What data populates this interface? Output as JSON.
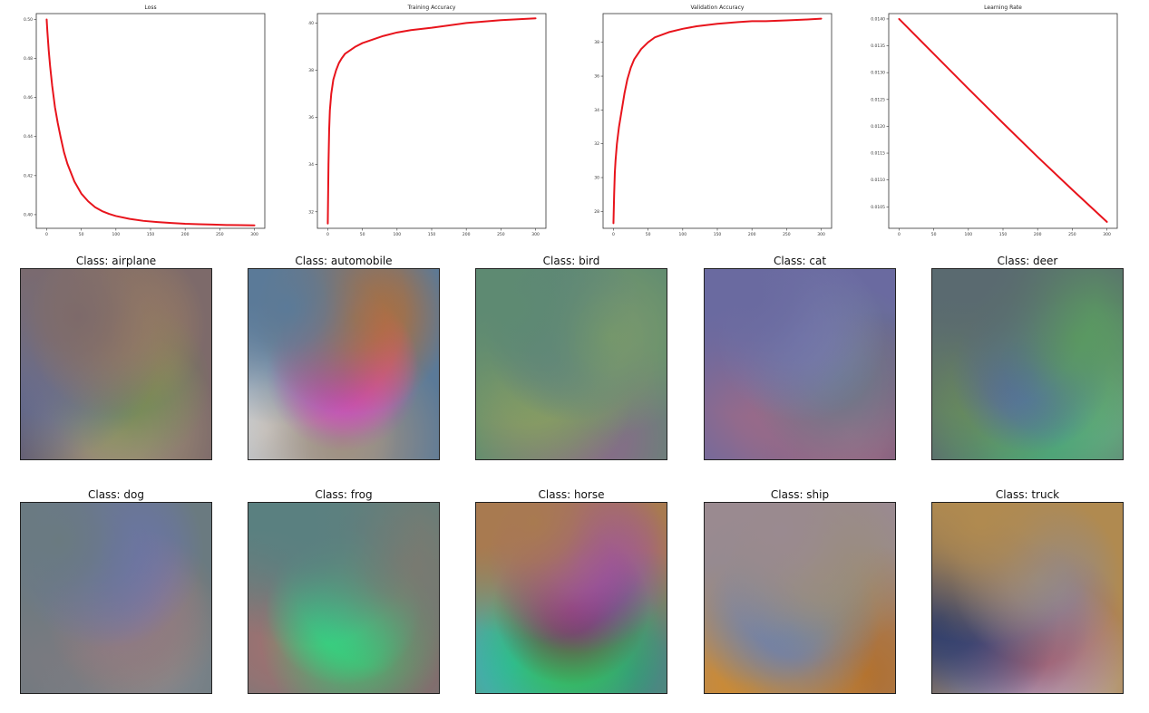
{
  "chart_data": [
    {
      "type": "line",
      "title": "Loss",
      "x": [
        0,
        1,
        2,
        3,
        5,
        8,
        12,
        16,
        20,
        25,
        30,
        40,
        50,
        60,
        70,
        80,
        90,
        100,
        120,
        140,
        160,
        180,
        200,
        220,
        240,
        260,
        280,
        300
      ],
      "series": [
        {
          "values": [
            0.5,
            0.494,
            0.489,
            0.484,
            0.476,
            0.466,
            0.455,
            0.447,
            0.44,
            0.432,
            0.426,
            0.417,
            0.4108,
            0.4068,
            0.4038,
            0.4018,
            0.4004,
            0.3993,
            0.3978,
            0.3968,
            0.3962,
            0.3957,
            0.3953,
            0.3951,
            0.3949,
            0.3947,
            0.3946,
            0.3945
          ]
        }
      ],
      "xlim": [
        -15,
        315
      ],
      "ylim": [
        0.393,
        0.503
      ],
      "xticks": [
        0,
        50,
        100,
        150,
        200,
        250,
        300
      ],
      "xtick_labels": [
        "0",
        "50",
        "100",
        "150",
        "200",
        "250",
        "300"
      ],
      "yticks": [
        0.4,
        0.42,
        0.44,
        0.46,
        0.48,
        0.5
      ],
      "ytick_labels": [
        "0.40",
        "0.42",
        "0.44",
        "0.46",
        "0.48",
        "0.50"
      ],
      "color": "#e8141c"
    },
    {
      "type": "line",
      "title": "Training Accuracy",
      "x": [
        0,
        1,
        2,
        3,
        5,
        8,
        12,
        16,
        20,
        25,
        30,
        40,
        50,
        60,
        80,
        100,
        120,
        150,
        200,
        250,
        300
      ],
      "series": [
        {
          "values": [
            31.5,
            34.0,
            35.5,
            36.3,
            37.0,
            37.6,
            38.0,
            38.3,
            38.5,
            38.7,
            38.8,
            39.0,
            39.15,
            39.25,
            39.45,
            39.6,
            39.7,
            39.8,
            40.0,
            40.12,
            40.2
          ]
        }
      ],
      "xlim": [
        -15,
        315
      ],
      "ylim": [
        31.3,
        40.4
      ],
      "xticks": [
        0,
        50,
        100,
        150,
        200,
        250,
        300
      ],
      "xtick_labels": [
        "0",
        "50",
        "100",
        "150",
        "200",
        "250",
        "300"
      ],
      "yticks": [
        32,
        34,
        36,
        38,
        40
      ],
      "ytick_labels": [
        "32",
        "34",
        "36",
        "38",
        "40"
      ],
      "color": "#e8141c"
    },
    {
      "type": "line",
      "title": "Validation Accuracy",
      "x": [
        0,
        1,
        2,
        3,
        5,
        8,
        12,
        16,
        20,
        25,
        30,
        40,
        50,
        60,
        80,
        100,
        120,
        150,
        180,
        200,
        220,
        250,
        280,
        300
      ],
      "series": [
        {
          "values": [
            27.3,
            29.0,
            30.3,
            31.0,
            32.0,
            33.0,
            34.0,
            35.0,
            35.8,
            36.5,
            37.0,
            37.6,
            38.0,
            38.3,
            38.6,
            38.8,
            38.95,
            39.1,
            39.2,
            39.25,
            39.25,
            39.3,
            39.35,
            39.4
          ]
        }
      ],
      "xlim": [
        -15,
        315
      ],
      "ylim": [
        27.0,
        39.7
      ],
      "xticks": [
        0,
        50,
        100,
        150,
        200,
        250,
        300
      ],
      "xtick_labels": [
        "0",
        "50",
        "100",
        "150",
        "200",
        "250",
        "300"
      ],
      "yticks": [
        28,
        30,
        32,
        34,
        36,
        38
      ],
      "ytick_labels": [
        "28",
        "30",
        "32",
        "34",
        "36",
        "38"
      ],
      "color": "#e8141c"
    },
    {
      "type": "line",
      "title": "Learning Rate",
      "x": [
        0,
        50,
        100,
        150,
        200,
        250,
        300
      ],
      "series": [
        {
          "values": [
            0.014,
            0.01335,
            0.0127,
            0.01206,
            0.01143,
            0.01082,
            0.01022
          ]
        }
      ],
      "xlim": [
        -15,
        315
      ],
      "ylim": [
        0.0101,
        0.0141
      ],
      "xticks": [
        0,
        50,
        100,
        150,
        200,
        250,
        300
      ],
      "xtick_labels": [
        "0",
        "50",
        "100",
        "150",
        "200",
        "250",
        "300"
      ],
      "yticks": [
        0.0105,
        0.011,
        0.0115,
        0.012,
        0.0125,
        0.013,
        0.0135,
        0.014
      ],
      "ytick_labels": [
        "0.0105",
        "0.0110",
        "0.0115",
        "0.0120",
        "0.0125",
        "0.0130",
        "0.0135",
        "0.0140"
      ],
      "color": "#e8141c"
    }
  ],
  "classes": [
    {
      "title": "Class: airplane",
      "colors": [
        "#7d6a6a",
        "#a8865e",
        "#5f6fa0",
        "#6c8a50",
        "#a89878",
        "#5a5a78"
      ]
    },
    {
      "title": "Class: automobile",
      "colors": [
        "#5b7a98",
        "#cf6a18",
        "#c040c8",
        "#ff5aa8",
        "#a09080",
        "#d8d8d8"
      ]
    },
    {
      "title": "Class: bird",
      "colors": [
        "#5e8a72",
        "#7a9a6a",
        "#4a6a9a",
        "#8aa060",
        "#6a8870",
        "#8a6a8a"
      ]
    },
    {
      "title": "Class: cat",
      "colors": [
        "#6a6aa0",
        "#7a80b0",
        "#6a7888",
        "#9a6a88",
        "#a0708a",
        "#5a4a6a"
      ]
    },
    {
      "title": "Class: deer",
      "colors": [
        "#5a6a70",
        "#5a9a60",
        "#5060b8",
        "#6a8a5a",
        "#4aa878",
        "#6ab080"
      ]
    },
    {
      "title": "Class: dog",
      "colors": [
        "#6a7a80",
        "#6a70c0",
        "#8a7a8a",
        "#9a7a70",
        "#7a7a80",
        "#8a8a90"
      ]
    },
    {
      "title": "Class: frog",
      "colors": [
        "#5a8080",
        "#7a7a70",
        "#2ae08a",
        "#40c070",
        "#a07070",
        "#8a6a6a"
      ]
    },
    {
      "title": "Class: horse",
      "colors": [
        "#a87a50",
        "#9a40c8",
        "#7a3050",
        "#30c050",
        "#30b8b8",
        "#3a8a8a"
      ]
    },
    {
      "title": "Class: ship",
      "colors": [
        "#9a8a90",
        "#9a9070",
        "#6a80b0",
        "#8a8a90",
        "#d08a2a",
        "#b07030"
      ]
    },
    {
      "title": "Class: truck",
      "colors": [
        "#b08a50",
        "#8a8a9a",
        "#2a3a6a",
        "#a05a6a",
        "#6a6aa8",
        "#c0c0e0"
      ]
    }
  ]
}
